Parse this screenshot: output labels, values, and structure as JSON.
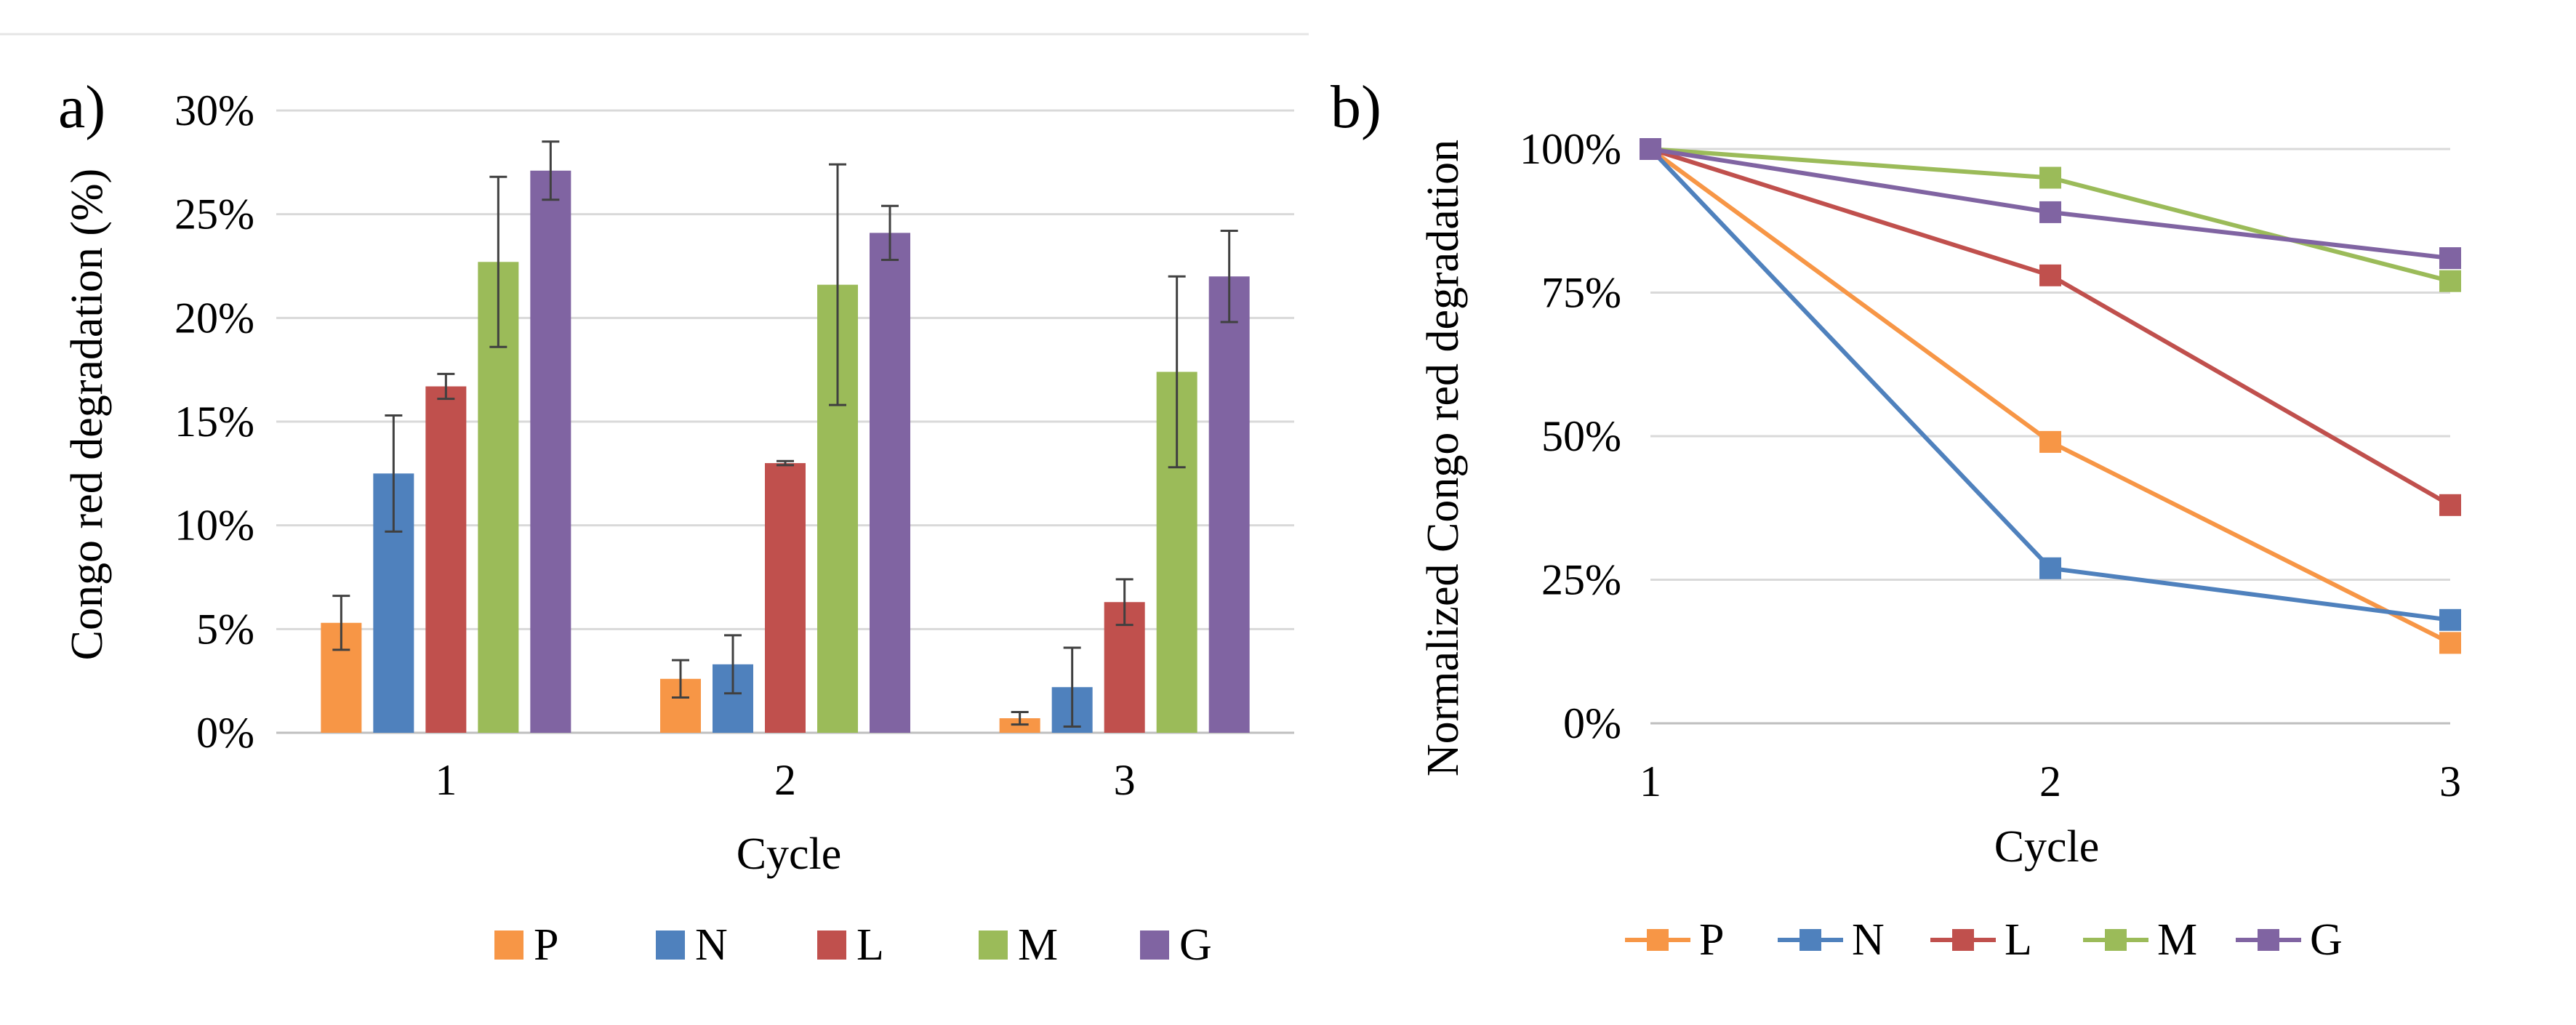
{
  "colors": {
    "P": "#f79646",
    "N": "#4f81bd",
    "L": "#c0504d",
    "M": "#9bbb59",
    "G": "#8064a2"
  },
  "chart_data": [
    {
      "type": "bar",
      "panel_label": "a)",
      "title": "",
      "xlabel": "Cycle",
      "ylabel": "Congo red degradation (%)",
      "categories": [
        "1",
        "2",
        "3"
      ],
      "ylim": [
        0,
        30
      ],
      "yticks": [
        "0%",
        "5%",
        "10%",
        "15%",
        "20%",
        "25%",
        "30%"
      ],
      "legend_position": "bottom",
      "series": [
        {
          "name": "P",
          "values": [
            5.3,
            2.6,
            0.7
          ],
          "errors": [
            1.3,
            0.9,
            0.3
          ]
        },
        {
          "name": "N",
          "values": [
            12.5,
            3.3,
            2.2
          ],
          "errors": [
            2.8,
            1.4,
            1.9
          ]
        },
        {
          "name": "L",
          "values": [
            16.7,
            13.0,
            6.3
          ],
          "errors": [
            0.6,
            0.1,
            1.1
          ]
        },
        {
          "name": "M",
          "values": [
            22.7,
            21.6,
            17.4
          ],
          "errors": [
            4.1,
            5.8,
            4.6
          ]
        },
        {
          "name": "G",
          "values": [
            27.1,
            24.1,
            22.0
          ],
          "errors": [
            1.4,
            1.3,
            2.2
          ]
        }
      ]
    },
    {
      "type": "line",
      "panel_label": "b)",
      "title": "",
      "xlabel": "Cycle",
      "ylabel": "Normalized Congo red degradation",
      "categories": [
        "1",
        "2",
        "3"
      ],
      "ylim": [
        0,
        100
      ],
      "yticks": [
        "0%",
        "25%",
        "50%",
        "75%",
        "100%"
      ],
      "legend_position": "bottom",
      "series": [
        {
          "name": "P",
          "values": [
            100,
            49,
            14
          ]
        },
        {
          "name": "N",
          "values": [
            100,
            27,
            18
          ]
        },
        {
          "name": "L",
          "values": [
            100,
            78,
            38
          ]
        },
        {
          "name": "M",
          "values": [
            100,
            95,
            77
          ]
        },
        {
          "name": "G",
          "values": [
            100,
            89,
            81
          ]
        }
      ]
    }
  ]
}
